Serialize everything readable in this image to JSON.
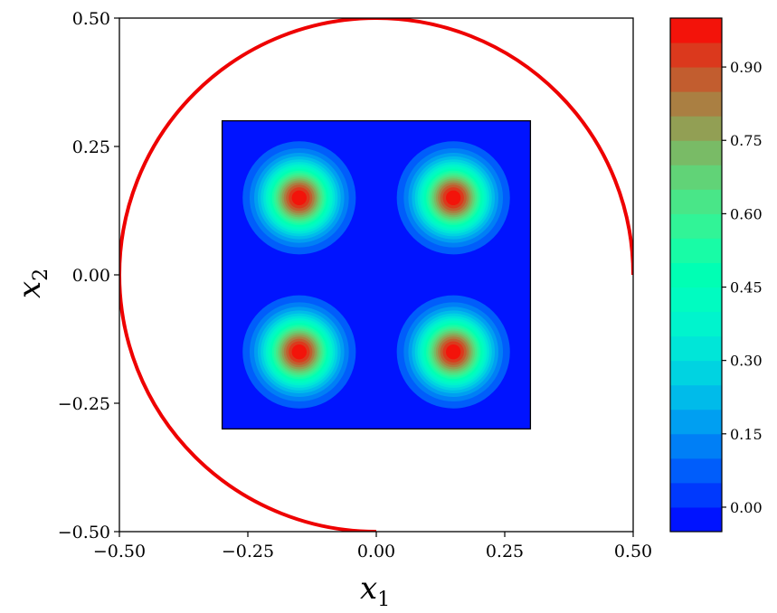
{
  "chart_data": {
    "type": "heatmap",
    "xlabel": "x",
    "xlabel_sub": "1",
    "ylabel": "x",
    "ylabel_sub": "2",
    "xlim": [
      -0.5,
      0.5
    ],
    "ylim": [
      -0.5,
      0.5
    ],
    "x_ticks": [
      "−0.50",
      "−0.25",
      "0.00",
      "0.25",
      "0.50"
    ],
    "x_tick_values": [
      -0.5,
      -0.25,
      0.0,
      0.25,
      0.5
    ],
    "y_ticks": [
      "−0.50",
      "−0.25",
      "0.00",
      "0.25",
      "0.50"
    ],
    "y_tick_values": [
      -0.5,
      -0.25,
      0.0,
      0.25,
      0.5
    ],
    "grid": false,
    "domain_extent": {
      "x": [
        -0.3,
        0.3
      ],
      "y": [
        -0.3,
        0.3
      ]
    },
    "peaks": [
      {
        "x": -0.15,
        "y": 0.15,
        "value": 1.0
      },
      {
        "x": 0.15,
        "y": 0.15,
        "value": 1.0
      },
      {
        "x": -0.15,
        "y": -0.15,
        "value": 1.0
      },
      {
        "x": 0.15,
        "y": -0.15,
        "value": 1.0
      }
    ],
    "peak_sigma": 0.045,
    "background_value": -0.02,
    "arc": {
      "center": [
        0,
        0
      ],
      "radius": 0.5,
      "start_angle_deg": 0,
      "end_angle_deg": 270,
      "color": "#ee0000"
    },
    "colorbar": {
      "min": -0.05,
      "max": 1.0,
      "levels": 21,
      "tick_labels": [
        "0.00",
        "0.15",
        "0.30",
        "0.45",
        "0.60",
        "0.75",
        "0.90"
      ],
      "tick_values": [
        0.0,
        0.15,
        0.3,
        0.45,
        0.6,
        0.75,
        0.9
      ],
      "colormap": "rainbow"
    }
  }
}
